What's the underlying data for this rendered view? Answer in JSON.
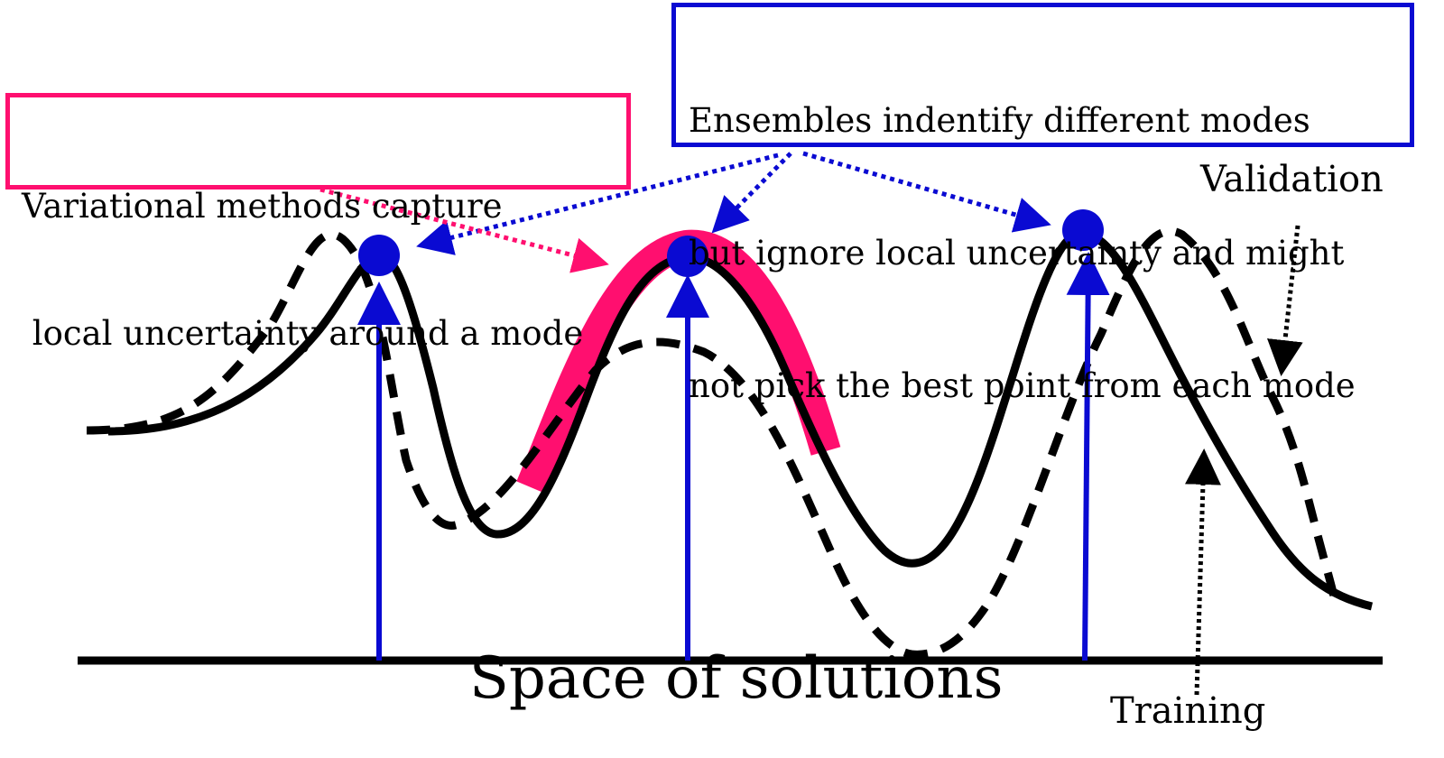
{
  "axis_label": "Space of solutions",
  "curve_labels": {
    "validation": "Validation",
    "training": "Training"
  },
  "annotations": {
    "variational": {
      "lines": [
        "Variational methods capture",
        " local uncertainty around a mode"
      ],
      "border_color": "#ff0f6f"
    },
    "ensembles": {
      "lines": [
        "Ensembles indentify different modes",
        "but ignore local uncertainty and might",
        "not pick the best point from each mode"
      ],
      "border_color": "#0a0ad2"
    }
  },
  "colors": {
    "training_curve": "#000000",
    "validation_curve": "#000000",
    "ensemble_markers": "#0a0ad2",
    "variational_highlight": "#ff0f6f",
    "axis": "#000000"
  },
  "modes": [
    {
      "name": "mode-1",
      "has_variational_highlight": false
    },
    {
      "name": "mode-2",
      "has_variational_highlight": true
    },
    {
      "name": "mode-3",
      "has_variational_highlight": false
    }
  ]
}
